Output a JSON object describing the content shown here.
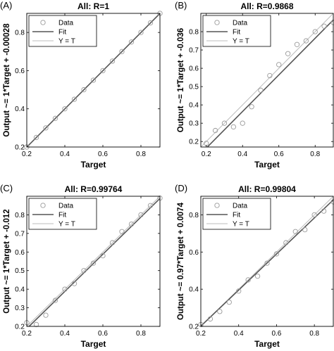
{
  "colors": {
    "fit": "#555555",
    "identity": "#bdbdbd",
    "data": "#9a9a9a",
    "axis": "#000000"
  },
  "chart_data": [
    {
      "panel_label": "(A)",
      "type": "scatter",
      "title": "All: R=1",
      "xlabel": "Target",
      "ylabel": "Output ~= 1*Target + -0.00028",
      "xlim": [
        0.2,
        0.9
      ],
      "ylim": [
        0.2,
        0.9
      ],
      "xticks": [
        "0.2",
        "0.4",
        "0.6",
        "0.8"
      ],
      "yticks": [
        "0.2",
        "0.4",
        "0.6",
        "0.8"
      ],
      "legend": {
        "position": "top-left",
        "entries": [
          "Data",
          "Fit",
          "Y = T"
        ]
      },
      "fit": {
        "slope": 1,
        "intercept": -0.00028
      },
      "series": [
        {
          "name": "Data",
          "x": [
            0.2,
            0.25,
            0.3,
            0.35,
            0.4,
            0.45,
            0.5,
            0.55,
            0.6,
            0.65,
            0.7,
            0.75,
            0.8,
            0.85,
            0.9
          ],
          "y": [
            0.2,
            0.25,
            0.3,
            0.35,
            0.4,
            0.45,
            0.5,
            0.55,
            0.6,
            0.65,
            0.7,
            0.75,
            0.8,
            0.85,
            0.9
          ]
        }
      ]
    },
    {
      "panel_label": "(B)",
      "type": "scatter",
      "title": "All: R=0.9868",
      "xlabel": "Target",
      "ylabel": "Output ~= 1*Target + -0.036",
      "xlim": [
        0.17,
        0.9
      ],
      "ylim": [
        0.17,
        0.9
      ],
      "xticks": [
        "0.2",
        "0.4",
        "0.6",
        "0.8"
      ],
      "yticks": [
        "0.2",
        "0.3",
        "0.4",
        "0.5",
        "0.6",
        "0.7",
        "0.8"
      ],
      "legend": {
        "position": "top-left",
        "entries": [
          "Data",
          "Fit",
          "Y = T"
        ]
      },
      "fit": {
        "slope": 1,
        "intercept": -0.036
      },
      "series": [
        {
          "name": "Data",
          "x": [
            0.2,
            0.25,
            0.3,
            0.35,
            0.4,
            0.45,
            0.5,
            0.55,
            0.6,
            0.65,
            0.7,
            0.75,
            0.8,
            0.85,
            0.9
          ],
          "y": [
            0.19,
            0.26,
            0.3,
            0.28,
            0.3,
            0.39,
            0.48,
            0.56,
            0.62,
            0.68,
            0.73,
            0.75,
            0.8,
            0.83,
            0.85
          ]
        }
      ]
    },
    {
      "panel_label": "(C)",
      "type": "scatter",
      "title": "All: R=0.99764",
      "xlabel": "Target",
      "ylabel": "Output ~= 1*Target + -0.012",
      "xlim": [
        0.2,
        0.9
      ],
      "ylim": [
        0.2,
        0.9
      ],
      "xticks": [
        "0.2",
        "0.4",
        "0.6",
        "0.8"
      ],
      "yticks": [
        "0.2",
        "0.3",
        "0.4",
        "0.5",
        "0.6",
        "0.7",
        "0.8"
      ],
      "legend": {
        "position": "top-left",
        "entries": [
          "Data",
          "Fit",
          "Y = T"
        ]
      },
      "fit": {
        "slope": 1,
        "intercept": -0.012
      },
      "series": [
        {
          "name": "Data",
          "x": [
            0.2,
            0.25,
            0.3,
            0.35,
            0.4,
            0.45,
            0.5,
            0.55,
            0.6,
            0.65,
            0.7,
            0.75,
            0.8,
            0.85,
            0.9
          ],
          "y": [
            0.22,
            0.21,
            0.26,
            0.34,
            0.4,
            0.43,
            0.5,
            0.54,
            0.58,
            0.65,
            0.71,
            0.75,
            0.8,
            0.85,
            0.89
          ]
        }
      ]
    },
    {
      "panel_label": "(D)",
      "type": "scatter",
      "title": "All: R=0.99804",
      "xlabel": "Target",
      "ylabel": "Output ~= 0.97*Target + 0.0074",
      "xlim": [
        0.2,
        0.9
      ],
      "ylim": [
        0.2,
        0.9
      ],
      "xticks": [
        "0.2",
        "0.4",
        "0.6",
        "0.8"
      ],
      "yticks": [
        "0.2",
        "0.4",
        "0.6",
        "0.8"
      ],
      "legend": {
        "position": "top-left",
        "entries": [
          "Data",
          "Fit",
          "Y = T"
        ]
      },
      "fit": {
        "slope": 0.97,
        "intercept": 0.0074
      },
      "series": [
        {
          "name": "Data",
          "x": [
            0.2,
            0.25,
            0.3,
            0.35,
            0.4,
            0.45,
            0.5,
            0.55,
            0.6,
            0.65,
            0.7,
            0.75,
            0.8,
            0.85,
            0.9
          ],
          "y": [
            0.21,
            0.24,
            0.28,
            0.33,
            0.39,
            0.45,
            0.47,
            0.54,
            0.59,
            0.65,
            0.71,
            0.72,
            0.8,
            0.82,
            0.87
          ]
        }
      ]
    }
  ]
}
